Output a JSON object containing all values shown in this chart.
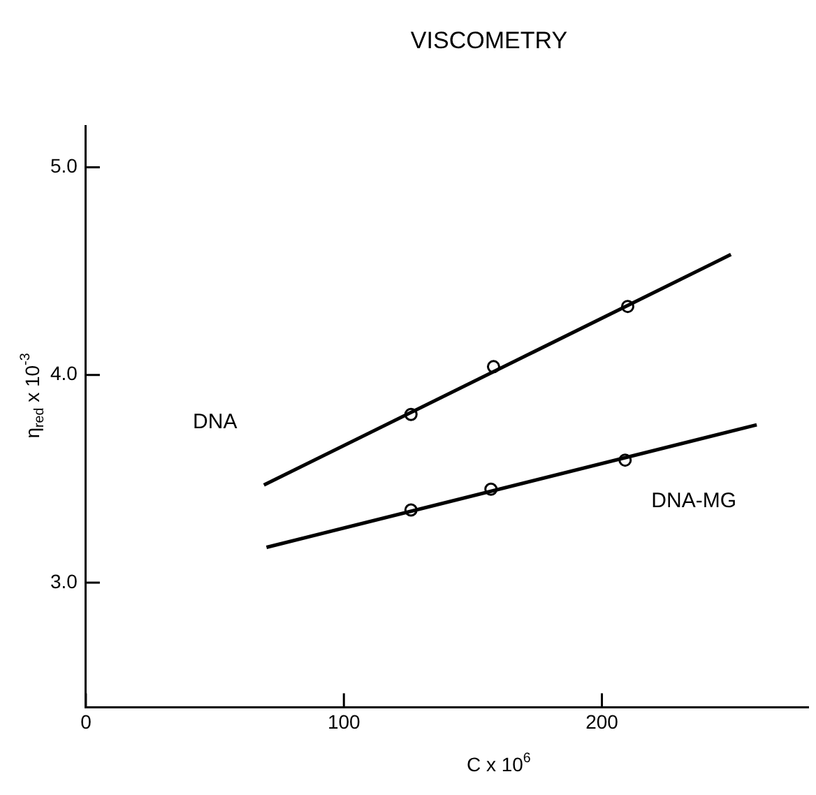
{
  "chart_data": {
    "type": "scatter",
    "title": "VISCOMETRY",
    "xlabel": "C x 10$^{6}$",
    "ylabel": "η$_{red}$ x 10$^{-3}$",
    "xlim": [
      0,
      280
    ],
    "xticks": [
      0,
      100,
      200
    ],
    "ylim": [
      2.4,
      5.2
    ],
    "yticks": [
      {
        "value": 3,
        "label": "3.0"
      },
      {
        "value": 4,
        "label": "4.0"
      },
      {
        "value": 5,
        "label": "5.0"
      }
    ],
    "grid": false,
    "legend": false,
    "marker": "circle",
    "series": [
      {
        "name": "DNA",
        "type": "line",
        "marker": "none",
        "color": "#000000",
        "x": [
          69,
          250
        ],
        "values": [
          3.47,
          4.58
        ]
      },
      {
        "name": "DNA-MG",
        "type": "line",
        "marker": "none",
        "color": "#000000",
        "x": [
          70,
          260
        ],
        "values": [
          3.17,
          3.76
        ]
      },
      {
        "color": "#000000",
        "x": [
          126,
          158,
          210
        ],
        "values": [
          3.81,
          4.04,
          4.33
        ]
      },
      {
        "color": "#000000",
        "x": [
          126,
          157,
          209
        ],
        "values": [
          3.35,
          3.45,
          3.59
        ]
      }
    ]
  }
}
